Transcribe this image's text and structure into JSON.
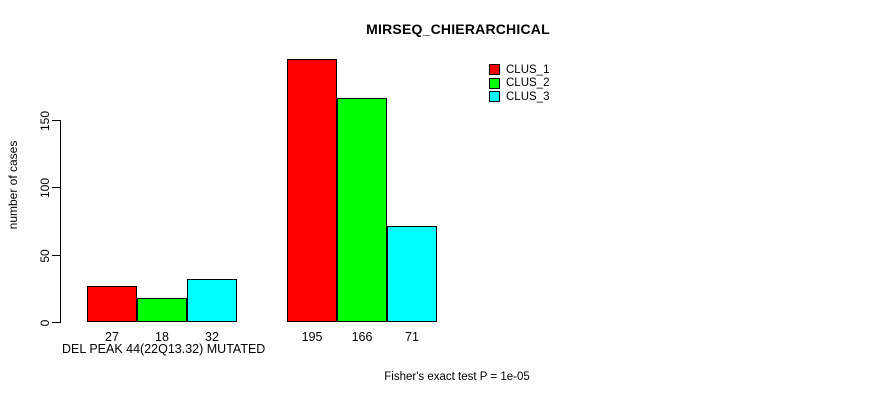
{
  "chart_data": {
    "type": "bar",
    "title": "MIRSEQ_CHIERARCHICAL",
    "ylabel": "number of cases",
    "xlabel": "DEL PEAK 44(22Q13.32) MUTATED",
    "footnote": "Fisher's exact test P = 1e-05",
    "ylim": [
      0,
      150
    ],
    "yticks": [
      0,
      50,
      100,
      150
    ],
    "grid": false,
    "legend_position": "top-right",
    "background_color": "#ffffff",
    "series": [
      {
        "name": "CLUS_1",
        "color": "#ff0000"
      },
      {
        "name": "CLUS_2",
        "color": "#00ff00"
      },
      {
        "name": "CLUS_3",
        "color": "#00ffff"
      }
    ],
    "groups": [
      {
        "label": "DEL PEAK 44(22Q13.32) MUTATED",
        "values": [
          27,
          18,
          32
        ]
      },
      {
        "label": "",
        "values": [
          195,
          166,
          71
        ]
      }
    ]
  }
}
